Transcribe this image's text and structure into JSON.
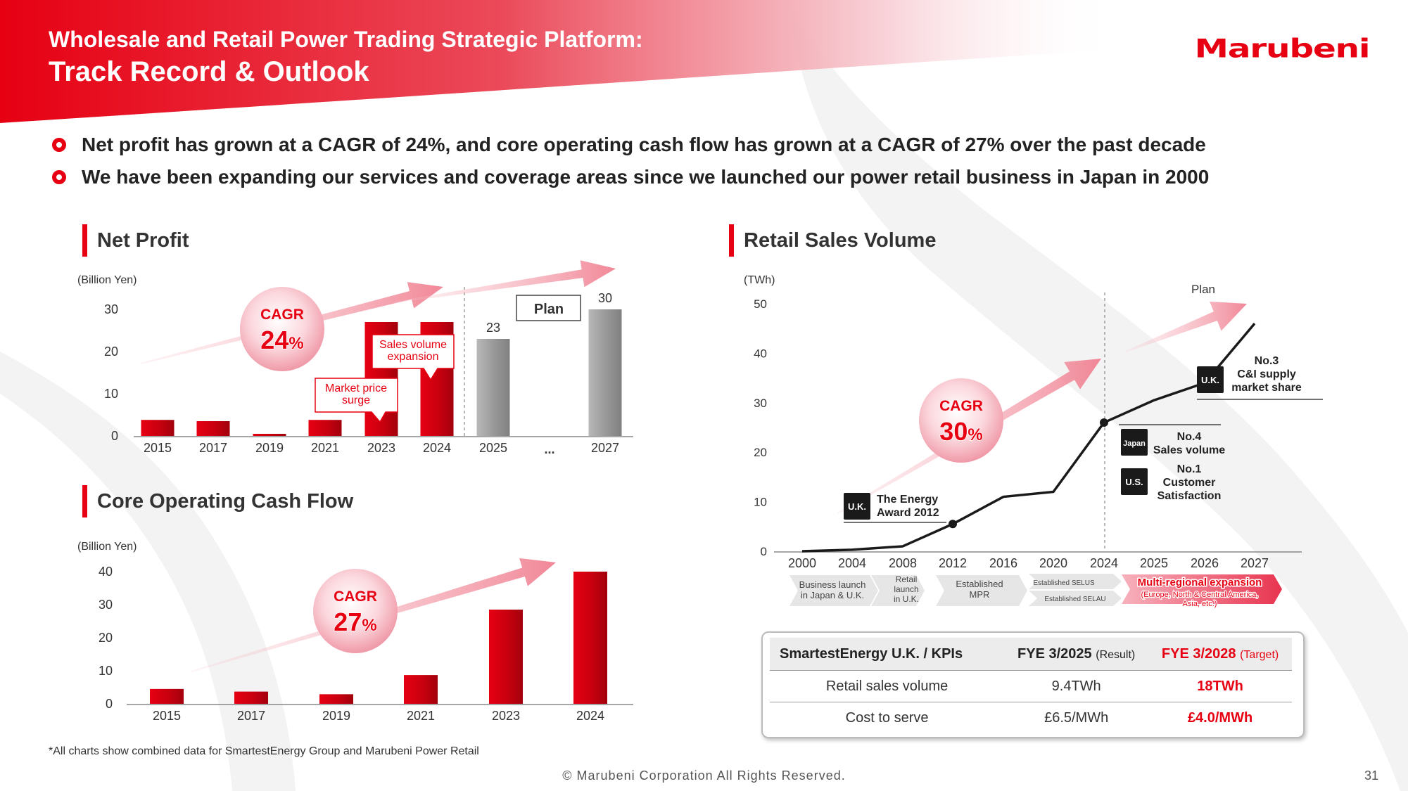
{
  "header": {
    "title_line1": "Wholesale and Retail Power Trading Strategic Platform:",
    "title_line2": "Track Record & Outlook",
    "logo_text": "Marubeni"
  },
  "bullets": [
    "Net profit has grown at a CAGR of 24%, and core operating cash flow has grown at a CAGR of 27% over the past decade",
    "We have been expanding our services and coverage areas since we launched our power retail business in Japan in 2000"
  ],
  "colors": {
    "accent": "#e60012",
    "plan_gray": "#9a9a9a"
  },
  "net_profit": {
    "section_title": "Net Profit",
    "unit": "(Billion Yen)",
    "cagr_label": "CAGR",
    "cagr_value": "24",
    "cagr_pct": "%",
    "plan_label": "Plan",
    "ellipsis": "...",
    "callout_price": "Market price\nsurge",
    "callout_volume": "Sales volume\nexpansion"
  },
  "core_cf": {
    "section_title": "Core Operating Cash Flow",
    "unit": "(Billion Yen)",
    "cagr_label": "CAGR",
    "cagr_value": "27",
    "cagr_pct": "%"
  },
  "retail": {
    "section_title": "Retail Sales Volume",
    "unit": "(TWh)",
    "plan_label": "Plan",
    "cagr_label": "CAGR",
    "cagr_value": "30",
    "cagr_pct": "%",
    "annotations": {
      "uk_award_badge": "U.K.",
      "uk_award_text": "The Energy\nAward 2012",
      "uk_ci_badge": "U.K.",
      "uk_ci_text": "No.3\nC&I supply\nmarket share",
      "japan_badge": "Japan",
      "japan_text": "No.4\nSales volume",
      "us_badge": "U.S.",
      "us_text": "No.1\nCustomer\nSatisfaction"
    },
    "timeline": [
      {
        "label": "Business launch\nin Japan & U.K."
      },
      {
        "label": "Retail\nlaunch\nin U.K."
      },
      {
        "label": "Established\nMPR"
      },
      {
        "label": "Established SELUS"
      },
      {
        "label": "Established SELAU"
      },
      {
        "label": "Multi-regional expansion",
        "sub": "(Europe, North & Central America,\nAsia, etc.)"
      }
    ]
  },
  "kpi_table": {
    "headers": {
      "col1": "SmartestEnergy U.K. / KPIs",
      "col2": "FYE 3/2025",
      "col2_sub": "(Result)",
      "col3": "FYE 3/2028",
      "col3_sub": "(Target)"
    },
    "rows": [
      {
        "label": "Retail sales volume",
        "result": "9.4TWh",
        "target": "18TWh"
      },
      {
        "label": "Cost to serve",
        "result": "£6.5/MWh",
        "target": "£4.0/MWh"
      }
    ]
  },
  "footnote": "*All charts show combined data for SmartestEnergy Group and Marubeni Power Retail",
  "copyright": "© Marubeni Corporation All Rights Reserved.",
  "page_number": "31",
  "chart_data": [
    {
      "type": "bar",
      "title": "Net Profit",
      "ylabel": "(Billion Yen)",
      "categories": [
        "2015",
        "2017",
        "2019",
        "2021",
        "2023",
        "2024",
        "2025",
        "...",
        "2027"
      ],
      "values": [
        3.8,
        3.5,
        0.5,
        3.8,
        27,
        27,
        23,
        null,
        30
      ],
      "plan": [
        false,
        false,
        false,
        false,
        false,
        false,
        true,
        false,
        true
      ],
      "data_labels": {
        "2025": "23",
        "2027": "30"
      },
      "yticks": [
        0,
        10,
        20,
        30
      ],
      "ylim": [
        0,
        30
      ],
      "grid": false
    },
    {
      "type": "bar",
      "title": "Core Operating Cash Flow",
      "ylabel": "(Billion Yen)",
      "categories": [
        "2015",
        "2017",
        "2019",
        "2021",
        "2023",
        "2024"
      ],
      "values": [
        4.5,
        3.7,
        2.9,
        8.7,
        28.5,
        40
      ],
      "yticks": [
        0,
        10,
        20,
        30,
        40
      ],
      "ylim": [
        0,
        40
      ],
      "grid": false
    },
    {
      "type": "line",
      "title": "Retail Sales Volume",
      "ylabel": "(TWh)",
      "categories": [
        "2000",
        "2004",
        "2008",
        "2012",
        "2016",
        "2020",
        "2024",
        "2025",
        "2026",
        "2027"
      ],
      "x": [
        2000,
        2004,
        2008,
        2012,
        2016,
        2020,
        2024,
        2025,
        2026,
        2027
      ],
      "values": [
        0,
        0.3,
        1,
        5.5,
        11,
        12,
        26,
        30.5,
        34,
        46
      ],
      "markers_at": [
        2012,
        2024,
        2026
      ],
      "yticks": [
        0,
        10,
        20,
        30,
        40,
        50
      ],
      "ylim": [
        0,
        50
      ],
      "grid": false
    }
  ]
}
